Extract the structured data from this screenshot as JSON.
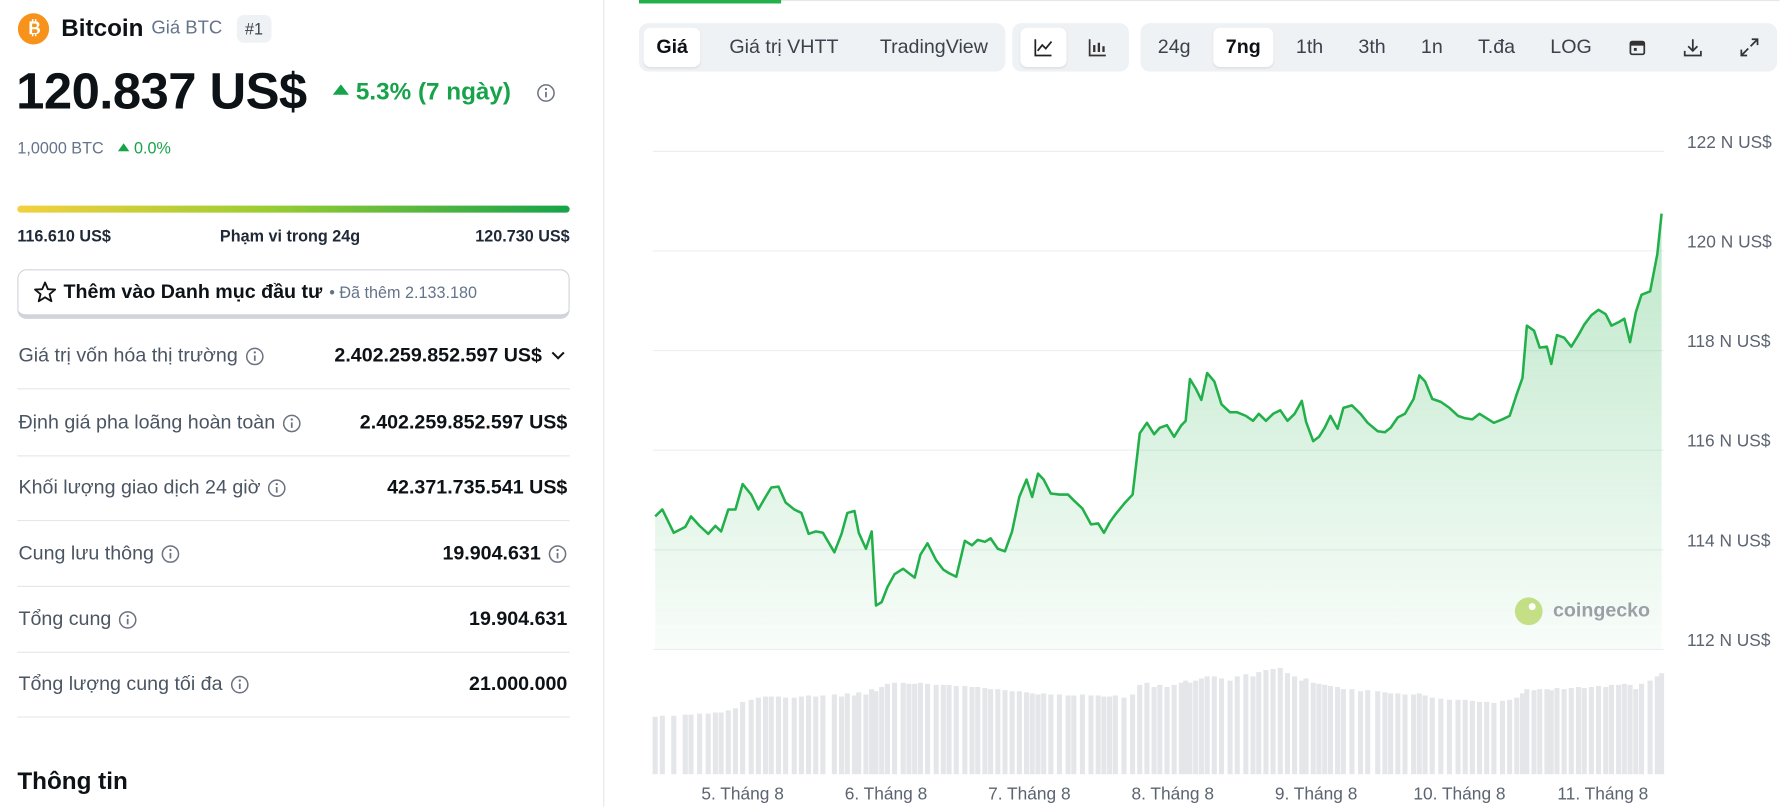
{
  "coin": {
    "name": "Bitcoin",
    "symbol_label": "Giá BTC",
    "rank": "#1"
  },
  "price": {
    "value": "120.837 US$",
    "change": "5.3% (7 ngày)",
    "btc": "1,0000 BTC",
    "btc_change": "0.0%"
  },
  "range_24h": {
    "low": "116.610 US$",
    "label": "Phạm vi trong 24g",
    "high": "120.730 US$"
  },
  "portfolio": {
    "button": "Thêm vào Danh mục đầu tư",
    "note": "• Đã thêm 2.133.180"
  },
  "stats": [
    {
      "label": "Giá trị vốn hóa thị trường",
      "value": "2.402.259.852.597 US$"
    },
    {
      "label": "Định giá pha loãng hoàn toàn",
      "value": "2.402.259.852.597 US$"
    },
    {
      "label": "Khối lượng giao dịch 24 giờ",
      "value": "42.371.735.541 US$"
    },
    {
      "label": "Cung lưu thông",
      "value": "19.904.631"
    },
    {
      "label": "Tổng cung",
      "value": "19.904.631"
    },
    {
      "label": "Tổng lượng cung tối đa",
      "value": "21.000.000"
    }
  ],
  "section_title": "Thông tin",
  "chart_tabs": [
    "Giá",
    "Giá trị VHTT",
    "TradingView"
  ],
  "periods": [
    "24g",
    "7ng",
    "1th",
    "3th",
    "1n",
    "T.đa",
    "LOG"
  ],
  "watermark": "coingecko",
  "chart_data": {
    "type": "line",
    "color": "#22b04b",
    "grid": true,
    "xlim": [
      4.39,
      11.41
    ],
    "ylim": [
      112,
      122
    ],
    "xticks": [
      {
        "value": 5,
        "label": "5. Tháng 8"
      },
      {
        "value": 6,
        "label": "6. Tháng 8"
      },
      {
        "value": 7,
        "label": "7. Tháng 8"
      },
      {
        "value": 8,
        "label": "8. Tháng 8"
      },
      {
        "value": 9,
        "label": "9. Tháng 8"
      },
      {
        "value": 10,
        "label": "10. Tháng 8"
      },
      {
        "value": 11,
        "label": "11. Tháng 8"
      }
    ],
    "yticks": [
      {
        "value": 112,
        "label": "112 N US$"
      },
      {
        "value": 114,
        "label": "114 N US$"
      },
      {
        "value": 116,
        "label": "116 N US$"
      },
      {
        "value": 118,
        "label": "118 N US$"
      },
      {
        "value": 120,
        "label": "120 N US$"
      },
      {
        "value": 122,
        "label": "122 N US$"
      }
    ],
    "x": [
      4.39,
      4.44,
      4.52,
      4.6,
      4.64,
      4.7,
      4.76,
      4.81,
      4.85,
      4.9,
      4.95,
      5.0,
      5.06,
      5.11,
      5.16,
      5.2,
      5.25,
      5.3,
      5.36,
      5.41,
      5.46,
      5.51,
      5.56,
      5.64,
      5.69,
      5.73,
      5.78,
      5.81,
      5.86,
      5.9,
      5.93,
      5.97,
      6.01,
      6.06,
      6.12,
      6.16,
      6.2,
      6.24,
      6.29,
      6.35,
      6.4,
      6.44,
      6.49,
      6.55,
      6.6,
      6.64,
      6.69,
      6.73,
      6.78,
      6.83,
      6.88,
      6.93,
      6.98,
      7.02,
      7.06,
      7.1,
      7.15,
      7.21,
      7.27,
      7.31,
      7.37,
      7.43,
      7.48,
      7.52,
      7.56,
      7.6,
      7.66,
      7.72,
      7.77,
      7.82,
      7.87,
      7.91,
      7.96,
      8.01,
      8.06,
      8.09,
      8.12,
      8.16,
      8.2,
      8.24,
      8.29,
      8.34,
      8.4,
      8.45,
      8.51,
      8.56,
      8.6,
      8.65,
      8.7,
      8.75,
      8.8,
      8.85,
      8.9,
      8.93,
      8.98,
      9.02,
      9.06,
      9.1,
      9.15,
      9.19,
      9.25,
      9.31,
      9.36,
      9.43,
      9.48,
      9.52,
      9.57,
      9.62,
      9.68,
      9.72,
      9.76,
      9.81,
      9.87,
      9.93,
      9.99,
      10.04,
      10.09,
      10.14,
      10.19,
      10.24,
      10.3,
      10.35,
      10.4,
      10.44,
      10.47,
      10.52,
      10.56,
      10.61,
      10.64,
      10.68,
      10.73,
      10.78,
      10.83,
      10.87,
      10.92,
      10.97,
      11.02,
      11.06,
      11.11,
      11.15,
      11.19,
      11.23,
      11.27,
      11.33,
      11.38,
      11.41
    ],
    "values": [
      114.67,
      114.81,
      114.34,
      114.46,
      114.67,
      114.48,
      114.32,
      114.48,
      114.37,
      114.81,
      114.81,
      115.32,
      115.11,
      114.81,
      115.06,
      115.25,
      115.27,
      114.95,
      114.81,
      114.74,
      114.32,
      114.37,
      114.34,
      113.95,
      114.32,
      114.74,
      114.78,
      114.34,
      114.02,
      114.37,
      112.88,
      112.95,
      113.25,
      113.51,
      113.62,
      113.53,
      113.44,
      113.9,
      114.13,
      113.79,
      113.6,
      113.53,
      113.46,
      114.18,
      114.09,
      114.2,
      114.16,
      114.23,
      114.02,
      113.97,
      114.37,
      115.06,
      115.41,
      115.06,
      115.53,
      115.41,
      115.13,
      115.11,
      115.11,
      114.99,
      114.83,
      114.51,
      114.53,
      114.34,
      114.55,
      114.71,
      114.92,
      115.11,
      116.34,
      116.55,
      116.32,
      116.45,
      116.5,
      116.27,
      116.5,
      116.59,
      117.43,
      117.24,
      117.01,
      117.55,
      117.38,
      116.92,
      116.76,
      116.76,
      116.69,
      116.59,
      116.73,
      116.59,
      116.73,
      116.8,
      116.59,
      116.73,
      116.99,
      116.57,
      116.18,
      116.27,
      116.45,
      116.69,
      116.43,
      116.85,
      116.9,
      116.73,
      116.55,
      116.38,
      116.36,
      116.45,
      116.66,
      116.73,
      117.03,
      117.5,
      117.38,
      117.03,
      116.97,
      116.85,
      116.69,
      116.64,
      116.62,
      116.73,
      116.64,
      116.55,
      116.62,
      116.69,
      117.13,
      117.45,
      118.5,
      118.4,
      118.06,
      118.08,
      117.73,
      118.31,
      118.26,
      118.08,
      118.31,
      118.52,
      118.71,
      118.82,
      118.73,
      118.5,
      118.57,
      118.64,
      118.17,
      118.77,
      119.12,
      119.19,
      119.94,
      120.75
    ],
    "volume": [
      54,
      55,
      55,
      56,
      56,
      57,
      57,
      58,
      58,
      60,
      62,
      68,
      70,
      72,
      73,
      73,
      73,
      72,
      72,
      73,
      74,
      73,
      74,
      75,
      73,
      76,
      74,
      77,
      75,
      80,
      78,
      82,
      85,
      86,
      86,
      85,
      85,
      86,
      85,
      84,
      84,
      84,
      83,
      83,
      82,
      82,
      81,
      80,
      80,
      79,
      78,
      78,
      77,
      76,
      75,
      76,
      75,
      75,
      74,
      74,
      75,
      74,
      74,
      73,
      73,
      74,
      72,
      75,
      84,
      86,
      82,
      84,
      82,
      84,
      86,
      88,
      86,
      88,
      90,
      92,
      92,
      90,
      88,
      92,
      94,
      92,
      96,
      98,
      99,
      100,
      95,
      92,
      88,
      90,
      86,
      85,
      84,
      83,
      82,
      80,
      80,
      78,
      79,
      78,
      77,
      76,
      76,
      75,
      75,
      76,
      74,
      72,
      71,
      70,
      70,
      70,
      69,
      68,
      68,
      67,
      69,
      70,
      72,
      76,
      80,
      79,
      80,
      80,
      79,
      81,
      80,
      81,
      82,
      81,
      82,
      83,
      82,
      84,
      84,
      85,
      84,
      80,
      85,
      88,
      92,
      95
    ]
  }
}
